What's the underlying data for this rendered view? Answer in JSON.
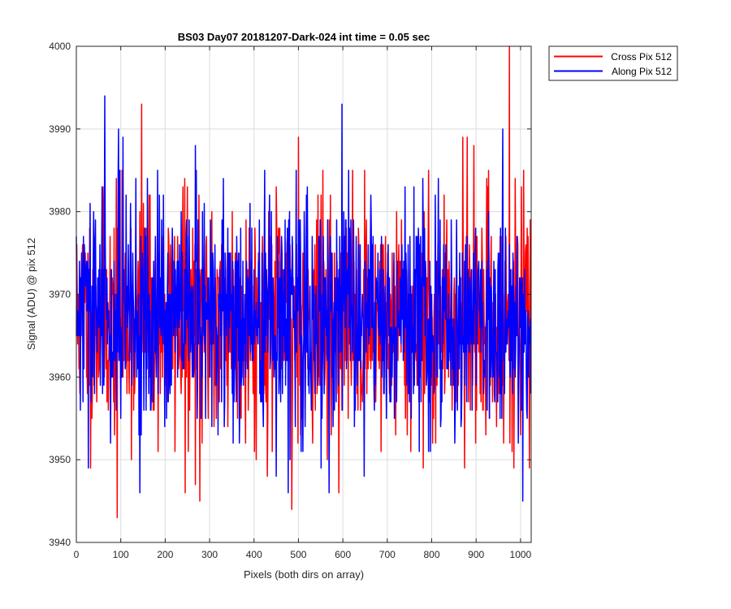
{
  "chart_data": {
    "type": "line",
    "title": "BS03 Day07 20181207-Dark-024 int time = 0.05 sec",
    "xlabel": "Pixels (both dirs on array)",
    "ylabel": "Signal (ADU) @ pix 512",
    "xlim": [
      0,
      1024
    ],
    "ylim": [
      3940,
      4000
    ],
    "xticks": [
      0,
      100,
      200,
      300,
      400,
      500,
      600,
      700,
      800,
      900,
      1000
    ],
    "yticks": [
      3940,
      3950,
      3960,
      3970,
      3980,
      3990,
      4000
    ],
    "grid": true,
    "legend_placement": "outside-top-right",
    "noise_model": {
      "mean": 3967,
      "approx_std": 7,
      "points_per_series": 1024
    },
    "series": [
      {
        "name": "Cross Pix 512",
        "color": "#ff0000",
        "seed": 11,
        "highlights": [
          [
            92,
            3943
          ],
          [
            147,
            3993
          ],
          [
            245,
            3946
          ],
          [
            278,
            3945
          ],
          [
            500,
            3989
          ],
          [
            485,
            3944
          ],
          [
            870,
            3989
          ],
          [
            895,
            3988
          ],
          [
            880,
            3989
          ],
          [
            975,
            4000
          ],
          [
            985,
            3949
          ],
          [
            1020,
            3949
          ],
          [
            240,
            3983
          ],
          [
            305,
            3980
          ]
        ]
      },
      {
        "name": "Along Pix 512",
        "color": "#0000ff",
        "seed": 29,
        "highlights": [
          [
            64,
            3994
          ],
          [
            95,
            3990
          ],
          [
            105,
            3989
          ],
          [
            143,
            3946
          ],
          [
            268,
            3988
          ],
          [
            598,
            3993
          ],
          [
            960,
            3990
          ],
          [
            1005,
            3945
          ],
          [
            740,
            3983
          ],
          [
            815,
            3984
          ],
          [
            477,
            3946
          ],
          [
            520,
            3983
          ]
        ]
      }
    ]
  }
}
